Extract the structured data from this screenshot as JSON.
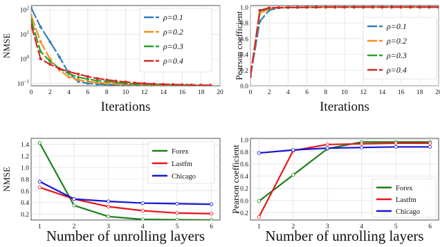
{
  "chart_data": [
    {
      "id": "nmse-iter",
      "type": "line",
      "title": "",
      "xlabel": "Iterations",
      "ylabel": "NMSE",
      "xlim": [
        0,
        20
      ],
      "ylim": [
        0.08,
        150
      ],
      "yscale": "log",
      "grid": true,
      "legend_position": "top-right",
      "xticks": [
        "0",
        "2",
        "4",
        "6",
        "8",
        "10",
        "12",
        "14",
        "16",
        "18",
        "20"
      ],
      "yticks": [
        {
          "v": 100,
          "label": "10",
          "exp": "2"
        },
        {
          "v": 10,
          "label": "10",
          "exp": "1"
        },
        {
          "v": 1,
          "label": "10",
          "exp": "0"
        },
        {
          "v": 0.1,
          "label": "10",
          "exp": "−1"
        }
      ],
      "x": [
        0,
        1,
        2,
        3,
        4,
        5,
        6,
        7,
        8,
        9,
        10,
        11,
        12,
        13,
        14,
        15,
        16,
        17,
        18,
        19
      ],
      "series": [
        {
          "name": "ρ=0.1",
          "color": "#2e7fb8",
          "values": [
            120,
            20,
            5,
            1.2,
            0.25,
            0.12,
            0.1,
            0.095,
            0.09,
            0.088,
            0.086,
            0.085,
            0.084,
            0.083,
            0.082,
            0.082,
            0.081,
            0.081,
            0.08,
            0.08
          ]
        },
        {
          "name": "ρ=0.2",
          "color": "#ff8c1a",
          "values": [
            60,
            5,
            1.0,
            0.35,
            0.18,
            0.14,
            0.12,
            0.11,
            0.1,
            0.095,
            0.092,
            0.09,
            0.088,
            0.086,
            0.085,
            0.084,
            0.083,
            0.082,
            0.081,
            0.08
          ]
        },
        {
          "name": "ρ=0.3",
          "color": "#2ca02c",
          "values": [
            40,
            2.0,
            0.8,
            0.4,
            0.25,
            0.18,
            0.15,
            0.13,
            0.12,
            0.11,
            0.1,
            0.095,
            0.092,
            0.09,
            0.088,
            0.086,
            0.085,
            0.083,
            0.082,
            0.081
          ]
        },
        {
          "name": "ρ=0.4",
          "color": "#d62728",
          "values": [
            25,
            1.0,
            0.6,
            0.4,
            0.3,
            0.24,
            0.19,
            0.16,
            0.14,
            0.125,
            0.115,
            0.105,
            0.1,
            0.095,
            0.092,
            0.09,
            0.088,
            0.086,
            0.085,
            0.084
          ]
        }
      ]
    },
    {
      "id": "pearson-iter",
      "type": "line",
      "title": "",
      "xlabel": "Iterations",
      "ylabel": "Pearson coefficient",
      "xlim": [
        0,
        20
      ],
      "ylim": [
        0,
        1.02
      ],
      "grid": true,
      "legend_position": "right",
      "xticks": [
        "0",
        "2",
        "4",
        "6",
        "8",
        "10",
        "12",
        "14",
        "16",
        "18",
        "20"
      ],
      "yticks": [
        "0.0",
        "0.2",
        "0.4",
        "0.6",
        "0.8",
        "1.0"
      ],
      "x": [
        0,
        1,
        2,
        3,
        4,
        5,
        6,
        7,
        8,
        9,
        10,
        11,
        12,
        13,
        14,
        15,
        16,
        17,
        18,
        19,
        20
      ],
      "series": [
        {
          "name": "ρ=0.1",
          "color": "#2e7fb8",
          "values": [
            0.12,
            0.82,
            0.96,
            0.99,
            0.995,
            0.997,
            0.998,
            0.998,
            0.999,
            0.999,
            0.999,
            0.999,
            0.999,
            0.999,
            0.999,
            0.999,
            0.999,
            0.999,
            0.999,
            0.999,
            0.999
          ]
        },
        {
          "name": "ρ=0.2",
          "color": "#ff8c1a",
          "values": [
            0.12,
            0.92,
            0.98,
            0.992,
            0.996,
            0.997,
            0.998,
            0.998,
            0.999,
            0.999,
            0.999,
            0.999,
            0.999,
            0.999,
            0.999,
            0.999,
            0.999,
            0.999,
            0.999,
            0.999,
            0.999
          ]
        },
        {
          "name": "ρ=0.3",
          "color": "#2ca02c",
          "values": [
            0.12,
            0.95,
            0.985,
            0.993,
            0.996,
            0.997,
            0.998,
            0.998,
            0.999,
            0.999,
            0.999,
            0.999,
            0.999,
            0.999,
            0.999,
            0.999,
            0.999,
            0.999,
            0.999,
            0.999,
            0.999
          ]
        },
        {
          "name": "ρ=0.4",
          "color": "#d62728",
          "values": [
            0.12,
            0.96,
            0.99,
            0.994,
            0.996,
            0.997,
            0.998,
            0.998,
            0.999,
            0.999,
            0.999,
            0.999,
            0.999,
            0.999,
            0.999,
            0.999,
            0.999,
            0.999,
            0.999,
            0.999,
            0.999
          ]
        }
      ]
    },
    {
      "id": "nmse-layers",
      "type": "line",
      "title": "",
      "xlabel": "Number of unrolling layers",
      "ylabel": "NMSE",
      "xlim": [
        0.75,
        6.25
      ],
      "ylim": [
        0.1,
        1.5
      ],
      "grid": true,
      "legend_position": "top-right",
      "xticks": [
        "1",
        "2",
        "3",
        "4",
        "5",
        "6"
      ],
      "yticks": [
        "0.2",
        "0.4",
        "0.6",
        "0.8",
        "1.0",
        "1.2",
        "1.4"
      ],
      "x": [
        1,
        2,
        3,
        4,
        5,
        6
      ],
      "series": [
        {
          "name": "Forex",
          "color": "#1a7f1a",
          "values": [
            1.42,
            0.35,
            0.16,
            0.11,
            0.105,
            0.1
          ]
        },
        {
          "name": "Lastfm",
          "color": "#e8151b",
          "values": [
            0.66,
            0.46,
            0.33,
            0.26,
            0.22,
            0.21
          ]
        },
        {
          "name": "Chicago",
          "color": "#1515d6",
          "values": [
            0.76,
            0.46,
            0.42,
            0.39,
            0.38,
            0.37
          ]
        }
      ]
    },
    {
      "id": "pearson-layers",
      "type": "line",
      "title": "",
      "xlabel": "Number of unrolling layers",
      "ylabel": "Pearson coefficient",
      "xlim": [
        0.75,
        6.25
      ],
      "ylim": [
        -0.32,
        1.02
      ],
      "grid": true,
      "legend_position": "bottom-right",
      "xticks": [
        "1",
        "2",
        "3",
        "4",
        "5",
        "6"
      ],
      "yticks": [
        "−0.2",
        "0.0",
        "0.2",
        "0.4",
        "0.6",
        "0.8",
        "1.0"
      ],
      "x": [
        1,
        2,
        3,
        4,
        5,
        6
      ],
      "series": [
        {
          "name": "Forex",
          "color": "#1a7f1a",
          "values": [
            -0.01,
            0.42,
            0.85,
            0.96,
            0.96,
            0.96
          ]
        },
        {
          "name": "Lastfm",
          "color": "#e8151b",
          "values": [
            -0.27,
            0.82,
            0.92,
            0.93,
            0.94,
            0.94
          ]
        },
        {
          "name": "Chicago",
          "color": "#1515d6",
          "values": [
            0.78,
            0.83,
            0.86,
            0.87,
            0.88,
            0.88
          ]
        }
      ]
    }
  ]
}
